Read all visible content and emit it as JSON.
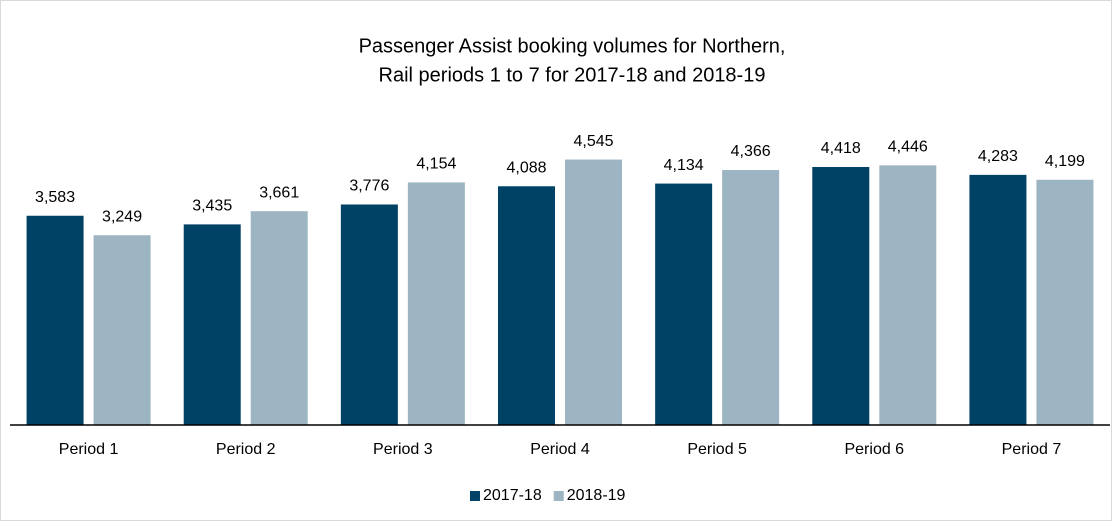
{
  "chart_data": {
    "type": "bar",
    "title": [
      "Passenger Assist booking volumes  for Northern,",
      "Rail periods 1 to 7 for 2017-18 and 2018-19"
    ],
    "categories": [
      "Period 1",
      "Period 2",
      "Period 3",
      "Period 4",
      "Period 5",
      "Period 6",
      "Period 7"
    ],
    "series": [
      {
        "name": "2017-18",
        "color": "#004266",
        "values": [
          3583,
          3435,
          3776,
          4088,
          4134,
          4418,
          4283
        ],
        "value_labels": [
          "3,583",
          "3,435",
          "3,776",
          "4,088",
          "4,134",
          "4,418",
          "4,283"
        ]
      },
      {
        "name": "2018-19",
        "color": "#9db4c2",
        "values": [
          3249,
          3661,
          4154,
          4545,
          4366,
          4446,
          4199
        ],
        "value_labels": [
          "3,249",
          "3,661",
          "4,154",
          "4,545",
          "4,366",
          "4,446",
          "4,199"
        ]
      }
    ],
    "ylim": [
      0,
      5000
    ],
    "legend": "bottom"
  }
}
